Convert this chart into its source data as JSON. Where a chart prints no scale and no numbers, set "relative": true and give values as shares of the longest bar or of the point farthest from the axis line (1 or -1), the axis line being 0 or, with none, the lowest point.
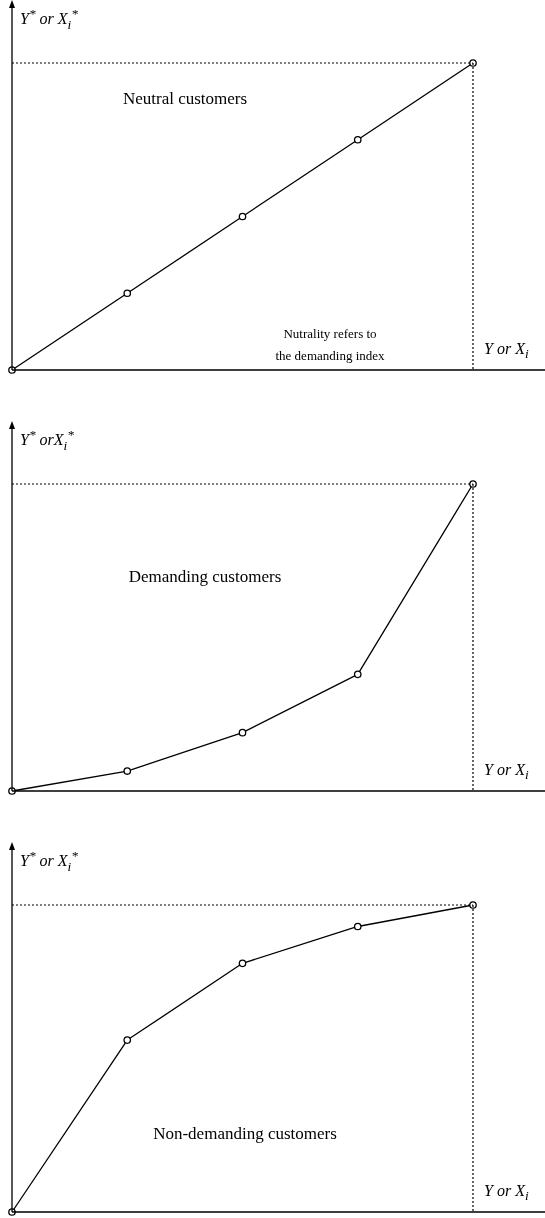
{
  "chart_data": [
    {
      "type": "line",
      "title": "Neutral customers",
      "ylabel": "Y$^{*}$ or X$_{i}$$^{*}$",
      "xlabel": "Y or X$_{i}$",
      "categories": [
        null,
        null,
        null,
        null,
        null
      ],
      "relative": true,
      "series": [
        {
          "color": "#000000",
          "values": [
            0,
            0.25,
            0.5,
            0.75,
            1
          ]
        }
      ],
      "ref_lines": [
        {
          "axis": "y",
          "value": 1,
          "line_style": "dotted",
          "color": "#000000"
        }
      ],
      "annotations": [
        "Nutrality refers to the demanding index"
      ],
      "marker": "circle",
      "line_style": "solid",
      "legend": false
    },
    {
      "type": "line",
      "title": "Demanding customers",
      "ylabel": "Y$^{*}$ orX$_{i}$$^{*}$",
      "xlabel": "Y or X$_{i}$",
      "categories": [
        null,
        null,
        null,
        null,
        null
      ],
      "relative": true,
      "series": [
        {
          "color": "#000000",
          "values": [
            0,
            0.065,
            0.19,
            0.38,
            1
          ]
        }
      ],
      "ref_lines": [
        {
          "axis": "y",
          "value": 1,
          "line_style": "dotted",
          "color": "#000000"
        }
      ],
      "marker": "circle",
      "line_style": "solid",
      "legend": false
    },
    {
      "type": "line",
      "title": "Non-demanding customers",
      "ylabel": "Y$^{*}$ or X$_{i}$$^{*}$",
      "xlabel": "Y or X$_{i}$",
      "categories": [
        null,
        null,
        null,
        null,
        null
      ],
      "relative": true,
      "series": [
        {
          "color": "#000000",
          "values": [
            0,
            0.56,
            0.81,
            0.93,
            1
          ]
        }
      ],
      "ref_lines": [
        {
          "axis": "y",
          "value": 1,
          "line_style": "dotted",
          "color": "#000000"
        }
      ],
      "marker": "circle",
      "line_style": "solid",
      "legend": false
    }
  ]
}
